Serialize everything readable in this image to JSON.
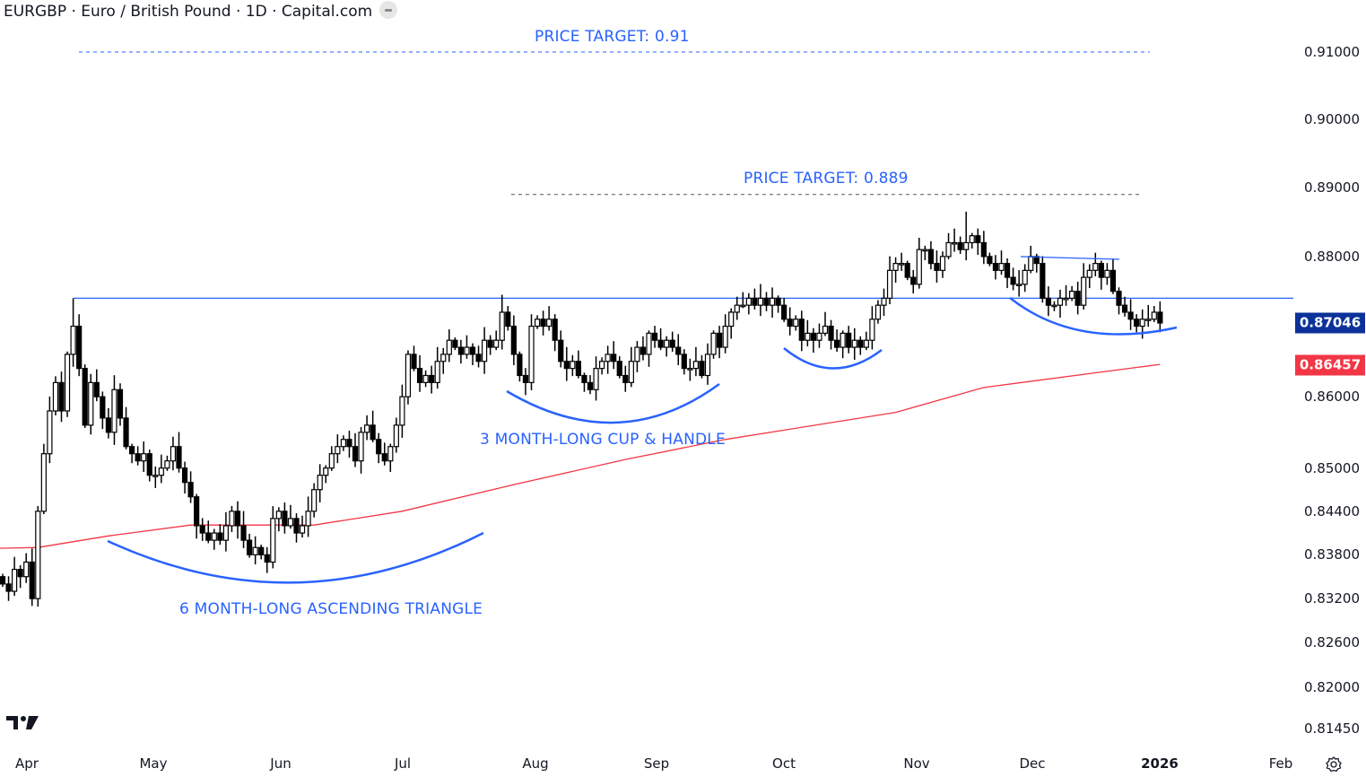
{
  "header": {
    "title": "EURGBP · Euro / British Pound · 1D · Capital.com"
  },
  "colors": {
    "annotation": "#2962ff",
    "ma": "#f23645",
    "last_price_bg": "#0c3299",
    "ma_label_bg": "#f23645",
    "candle": "#000000"
  },
  "annotations": {
    "target1": "PRICE TARGET: 0.91",
    "target2": "PRICE TARGET: 0.889",
    "pattern1": "6 MONTH-LONG ASCENDING TRIANGLE",
    "pattern2": "3 MONTH-LONG CUP & HANDLE"
  },
  "price_labels": {
    "last": "0.87046",
    "ma": "0.86457"
  },
  "chart_data": {
    "type": "candlestick",
    "title": "EURGBP · Euro / British Pound · 1D · Capital.com",
    "scale": "log",
    "ylim": [
      0.8125,
      0.915
    ],
    "y_ticks": [
      "0.91000",
      "0.90000",
      "0.89000",
      "0.88000",
      "0.86000",
      "0.85000",
      "0.84400",
      "0.83800",
      "0.83200",
      "0.82600",
      "0.82000",
      "0.81450"
    ],
    "x_ticks": [
      "Apr",
      "May",
      "Jun",
      "Jul",
      "Aug",
      "Sep",
      "Oct",
      "Nov",
      "Dec",
      "2026",
      "Feb"
    ],
    "closes": [
      0.834,
      0.833,
      0.836,
      0.835,
      0.837,
      0.832,
      0.844,
      0.852,
      0.858,
      0.862,
      0.858,
      0.866,
      0.87,
      0.864,
      0.856,
      0.862,
      0.86,
      0.857,
      0.855,
      0.861,
      0.857,
      0.853,
      0.852,
      0.851,
      0.852,
      0.849,
      0.849,
      0.85,
      0.851,
      0.853,
      0.85,
      0.848,
      0.846,
      0.842,
      0.841,
      0.84,
      0.841,
      0.84,
      0.842,
      0.844,
      0.842,
      0.84,
      0.838,
      0.839,
      0.838,
      0.837,
      0.843,
      0.844,
      0.842,
      0.843,
      0.841,
      0.842,
      0.844,
      0.847,
      0.849,
      0.85,
      0.852,
      0.853,
      0.854,
      0.853,
      0.851,
      0.855,
      0.856,
      0.854,
      0.852,
      0.851,
      0.853,
      0.856,
      0.86,
      0.866,
      0.864,
      0.862,
      0.863,
      0.862,
      0.865,
      0.866,
      0.868,
      0.867,
      0.866,
      0.867,
      0.866,
      0.865,
      0.868,
      0.867,
      0.868,
      0.872,
      0.87,
      0.866,
      0.863,
      0.862,
      0.87,
      0.871,
      0.87,
      0.871,
      0.868,
      0.865,
      0.864,
      0.865,
      0.863,
      0.862,
      0.861,
      0.864,
      0.865,
      0.866,
      0.865,
      0.863,
      0.862,
      0.865,
      0.867,
      0.866,
      0.869,
      0.868,
      0.867,
      0.868,
      0.867,
      0.866,
      0.864,
      0.864,
      0.865,
      0.863,
      0.866,
      0.869,
      0.867,
      0.87,
      0.872,
      0.873,
      0.873,
      0.874,
      0.873,
      0.874,
      0.873,
      0.874,
      0.873,
      0.871,
      0.87,
      0.871,
      0.868,
      0.869,
      0.868,
      0.869,
      0.87,
      0.868,
      0.867,
      0.869,
      0.867,
      0.868,
      0.867,
      0.868,
      0.871,
      0.873,
      0.874,
      0.878,
      0.879,
      0.879,
      0.877,
      0.876,
      0.881,
      0.881,
      0.879,
      0.878,
      0.88,
      0.882,
      0.882,
      0.881,
      0.882,
      0.883,
      0.882,
      0.88,
      0.879,
      0.878,
      0.879,
      0.877,
      0.876,
      0.876,
      0.878,
      0.88,
      0.879,
      0.874,
      0.873,
      0.873,
      0.874,
      0.874,
      0.875,
      0.873,
      0.877,
      0.878,
      0.879,
      0.877,
      0.878,
      0.875,
      0.873,
      0.872,
      0.871,
      0.87,
      0.871,
      0.871,
      0.872,
      0.87046
    ],
    "high_overrides": {
      "12": 0.874,
      "85": 0.8745,
      "164": 0.8865
    },
    "low_overrides": {
      "45": 0.8355,
      "5": 0.831
    },
    "moving_average": {
      "name": "MA",
      "points": [
        [
          0,
          0.8389
        ],
        [
          6,
          0.839
        ],
        [
          18,
          0.8406
        ],
        [
          32,
          0.8421
        ],
        [
          53,
          0.8421
        ],
        [
          68,
          0.844
        ],
        [
          87,
          0.8477
        ],
        [
          106,
          0.8512
        ],
        [
          123,
          0.854
        ],
        [
          152,
          0.8578
        ],
        [
          167,
          0.8613
        ],
        [
          197,
          0.86457
        ]
      ]
    },
    "levels": {
      "resistance": 0.874,
      "target1": 0.91,
      "target2": 0.889
    },
    "last_price": 0.87046
  }
}
